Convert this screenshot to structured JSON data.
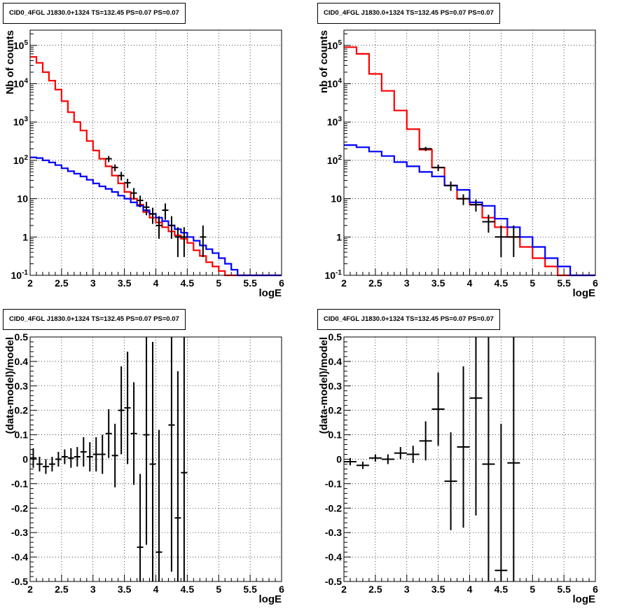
{
  "chart_data": [
    {
      "type": "line",
      "title": "CID0_4FGL J1830.0+1324 TS=132.45 PS=0.07 PS=0.07",
      "xlabel": "logE",
      "ylabel": "Nb of counts",
      "yscale": "log",
      "xlim": [
        2,
        6
      ],
      "ylim": [
        0.1,
        250000
      ],
      "x_ticks": [
        "2",
        "2.5",
        "3",
        "3.5",
        "4",
        "4.5",
        "5",
        "5.5",
        "6"
      ],
      "y_ticks": [
        "10^-1",
        "1",
        "10",
        "10^2",
        "10^3",
        "10^4",
        "10^5"
      ],
      "grid": true,
      "bin_width": 0.1,
      "bin_starts": [
        2.0,
        2.1,
        2.2,
        2.3,
        2.4,
        2.5,
        2.6,
        2.7,
        2.8,
        2.9,
        3.0,
        3.1,
        3.2,
        3.3,
        3.4,
        3.5,
        3.6,
        3.7,
        3.8,
        3.9,
        4.0,
        4.1,
        4.2,
        4.3,
        4.4,
        4.5,
        4.6,
        4.7,
        4.8,
        4.9,
        5.0,
        5.1,
        5.2,
        5.3,
        5.4,
        5.5,
        5.6,
        5.7,
        5.8,
        5.9
      ],
      "series": [
        {
          "color": "#ff0000",
          "kind": "histogram",
          "values": [
            50000,
            35000,
            20000,
            12000,
            7000,
            3500,
            1800,
            1000,
            600,
            320,
            180,
            110,
            70,
            40,
            25,
            15,
            10,
            7,
            4.5,
            3.2,
            2.4,
            1.8,
            1.4,
            1.1,
            0.9,
            0.7,
            0.45,
            0.32,
            0.22,
            0.17,
            0.13,
            0.1,
            0.1,
            0.1,
            0.1,
            0.1,
            0.1,
            0.1,
            0.1,
            0.1
          ]
        },
        {
          "color": "#0000ff",
          "kind": "histogram",
          "values": [
            120,
            115,
            100,
            88,
            75,
            62,
            52,
            45,
            38,
            31,
            25,
            21,
            18,
            15,
            12,
            10,
            8,
            6.5,
            5,
            4,
            3.2,
            2.6,
            2,
            1.6,
            1.3,
            1,
            0.8,
            0.6,
            0.48,
            0.38,
            0.28,
            0.2,
            0.14,
            0.1,
            0.1,
            0.1,
            0.1,
            0.1,
            0.1,
            0.1
          ]
        },
        {
          "color": "#000000",
          "kind": "points",
          "x": [
            3.25,
            3.35,
            3.45,
            3.55,
            3.65,
            3.75,
            3.85,
            3.95,
            4.05,
            4.15,
            4.25,
            4.35,
            4.45,
            4.75
          ],
          "y": [
            110,
            65,
            40,
            26,
            14,
            9,
            6,
            4,
            2,
            5,
            2,
            1,
            1,
            1
          ],
          "ylo": [
            90,
            52,
            30,
            19,
            9.5,
            6,
            3.7,
            2.2,
            0.9,
            2.8,
            0.9,
            0.3,
            0.3,
            0.3
          ],
          "yhi": [
            130,
            78,
            50,
            33,
            19,
            12,
            8.3,
            5.8,
            3.5,
            7.5,
            3.5,
            1.8,
            1.8,
            2
          ]
        }
      ]
    },
    {
      "type": "line",
      "title": "CID0_4FGL J1830.0+1324 TS=132.45 PS=0.07 PS=0.07",
      "xlabel": "logE",
      "ylabel": "nb of counts",
      "yscale": "log",
      "xlim": [
        2,
        6
      ],
      "ylim": [
        0.1,
        250000
      ],
      "x_ticks": [
        "2",
        "2.5",
        "3",
        "3.5",
        "4",
        "4.5",
        "5",
        "5.5",
        "6"
      ],
      "y_ticks": [
        "10^-1",
        "1",
        "10",
        "10^2",
        "10^3",
        "10^4",
        "10^5"
      ],
      "grid": true,
      "bin_width": 0.2,
      "bin_starts": [
        2.0,
        2.2,
        2.4,
        2.6,
        2.8,
        3.0,
        3.2,
        3.4,
        3.6,
        3.8,
        4.0,
        4.2,
        4.4,
        4.6,
        4.8,
        5.0,
        5.2,
        5.4,
        5.6,
        5.8
      ],
      "series": [
        {
          "color": "#ff0000",
          "kind": "histogram",
          "values": [
            90000,
            60000,
            18000,
            6500,
            2000,
            650,
            190,
            65,
            22,
            10,
            7,
            3.2,
            1.8,
            1.0,
            0.55,
            0.28,
            0.17,
            0.1,
            0.1,
            0.1
          ]
        },
        {
          "color": "#0000ff",
          "kind": "histogram",
          "values": [
            250,
            220,
            170,
            130,
            90,
            70,
            50,
            38,
            22,
            17,
            8,
            6.5,
            3,
            1.8,
            1.0,
            0.55,
            0.28,
            0.17,
            0.1,
            0.1
          ]
        },
        {
          "color": "#000000",
          "kind": "points",
          "x": [
            3.3,
            3.5,
            3.7,
            3.9,
            4.1,
            4.3,
            4.5,
            4.7
          ],
          "y": [
            200,
            65,
            22,
            10,
            7,
            2.5,
            1,
            1
          ],
          "ylo": [
            175,
            52,
            16,
            6.8,
            4.6,
            1.3,
            0.3,
            0.3
          ],
          "yhi": [
            225,
            78,
            28,
            13,
            9.5,
            3.8,
            2,
            2
          ]
        }
      ]
    },
    {
      "type": "scatter",
      "title": "CID0_4FGL J1830.0+1324 TS=132.45 PS=0.07 PS=0.07",
      "xlabel": "logE",
      "ylabel": "(data-model)/model",
      "xlim": [
        2,
        6
      ],
      "ylim": [
        -0.5,
        0.5
      ],
      "x_ticks": [
        "2",
        "2.5",
        "3",
        "3.5",
        "4",
        "4.5",
        "5",
        "5.5",
        "6"
      ],
      "y_ticks": [
        "-0.5",
        "-0.4",
        "-0.3",
        "-0.2",
        "-0.1",
        "0",
        "0.1",
        "0.2",
        "0.3",
        "0.4",
        "0.5"
      ],
      "grid": true,
      "x_halfwidth": 0.05,
      "series": [
        {
          "color": "#000000",
          "x": [
            2.05,
            2.15,
            2.25,
            2.35,
            2.45,
            2.55,
            2.65,
            2.75,
            2.85,
            2.95,
            3.05,
            3.15,
            3.25,
            3.35,
            3.45,
            3.55,
            3.65,
            3.75,
            3.85,
            3.95,
            4.05,
            4.25,
            4.35,
            4.45
          ],
          "y": [
            0.005,
            -0.02,
            -0.03,
            -0.02,
            0.0,
            0.01,
            0.005,
            0.01,
            0.03,
            0.01,
            0.02,
            0.02,
            0.105,
            0.015,
            0.2,
            0.21,
            0.105,
            -0.36,
            0.1,
            -0.02,
            -0.38,
            0.14,
            -0.24,
            -0.055
          ],
          "err": [
            0.04,
            0.03,
            0.03,
            0.03,
            0.03,
            0.03,
            0.04,
            0.04,
            0.06,
            0.06,
            0.07,
            0.08,
            0.1,
            0.13,
            0.18,
            0.23,
            0.21,
            0.3,
            0.45,
            0.5,
            0.5,
            0.6,
            0.6,
            0.6
          ]
        }
      ]
    },
    {
      "type": "scatter",
      "title": "CID0_4FGL J1830.0+1324 TS=132.45 PS=0.07 PS=0.07",
      "xlabel": "logE",
      "ylabel": "(data-model)/model",
      "xlim": [
        2,
        6
      ],
      "ylim": [
        -0.5,
        0.5
      ],
      "x_ticks": [
        "2",
        "2.5",
        "3",
        "3.5",
        "4",
        "4.5",
        "5",
        "5.5",
        "6"
      ],
      "y_ticks": [
        "-0.5",
        "-0.4",
        "-0.3",
        "-0.2",
        "-0.1",
        "0",
        "0.1",
        "0.2",
        "0.3",
        "0.4",
        "0.5"
      ],
      "grid": true,
      "x_halfwidth": 0.1,
      "series": [
        {
          "color": "#000000",
          "x": [
            2.1,
            2.3,
            2.5,
            2.7,
            2.9,
            3.1,
            3.3,
            3.5,
            3.7,
            3.9,
            4.1,
            4.3,
            4.5,
            4.7
          ],
          "y": [
            -0.01,
            -0.025,
            0.005,
            0.0,
            0.025,
            0.02,
            0.075,
            0.205,
            -0.09,
            0.05,
            0.25,
            -0.02,
            -0.455,
            -0.015
          ],
          "err": [
            0.015,
            0.015,
            0.015,
            0.02,
            0.025,
            0.035,
            0.08,
            0.15,
            0.2,
            0.33,
            0.48,
            0.6,
            0.6,
            0.6
          ]
        }
      ]
    }
  ]
}
